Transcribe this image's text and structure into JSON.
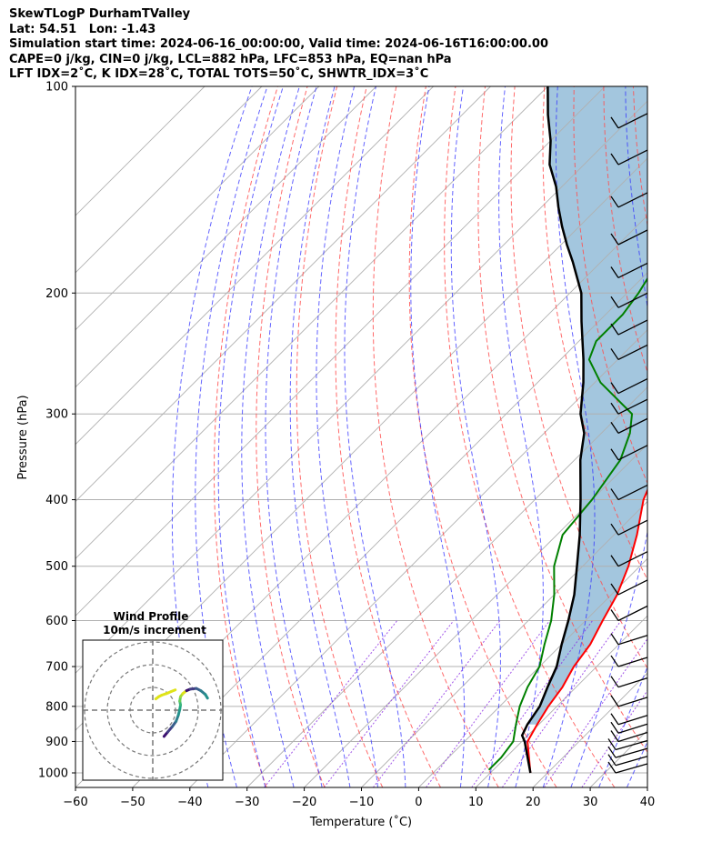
{
  "header": {
    "line1": "SkewTLogP DurhamTValley",
    "line2": "Lat: 54.51   Lon: -1.43",
    "line3": "Simulation start time: 2024-06-16_00:00:00, Valid time: 2024-06-16T16:00:00.00",
    "line4": "CAPE=0 j/kg, CIN=0 j/kg, LCL=882 hPa, LFC=853 hPa, EQ=nan hPa",
    "line5": "LFT IDX=2˚C, K IDX=28˚C, TOTAL TOTS=50˚C, SHWTR_IDX=3˚C"
  },
  "chart_data": {
    "type": "line",
    "subtype": "skew-T log-P",
    "xlabel": "Temperature (˚C)",
    "ylabel": "Pressure (hPa)",
    "xlim": [
      -60,
      40
    ],
    "ylim": [
      1050,
      100
    ],
    "y_scale": "log",
    "grid": true,
    "x_ticks": [
      "−60",
      "−50",
      "−40",
      "−30",
      "−20",
      "−10",
      "0",
      "10",
      "20",
      "30",
      "40"
    ],
    "y_ticks": [
      "100",
      "200",
      "300",
      "400",
      "500",
      "600",
      "700",
      "800",
      "900",
      "1000"
    ],
    "series": [
      {
        "role": "temperature",
        "color": "#ff0000",
        "points": [
          [
            17,
            1000
          ],
          [
            11,
            900
          ],
          [
            9.7,
            850
          ],
          [
            8.5,
            800
          ],
          [
            7.6,
            750
          ],
          [
            6,
            700
          ],
          [
            5,
            650
          ],
          [
            3,
            600
          ],
          [
            1,
            550
          ],
          [
            -2,
            500
          ],
          [
            -6,
            450
          ],
          [
            -11,
            400
          ],
          [
            -15,
            350
          ],
          [
            -20,
            320
          ],
          [
            -24,
            300
          ],
          [
            -26,
            280
          ],
          [
            -31,
            250
          ],
          [
            -37,
            220
          ],
          [
            -42,
            200
          ],
          [
            -48,
            180
          ],
          [
            -52,
            170
          ],
          [
            -55,
            160
          ],
          [
            -58,
            150
          ],
          [
            -62,
            140
          ],
          [
            -65,
            130
          ],
          [
            -70,
            120
          ],
          [
            -72,
            110
          ],
          [
            -76,
            100
          ]
        ]
      },
      {
        "role": "dewpoint",
        "color": "#008000",
        "points": [
          [
            9.2,
            990
          ],
          [
            9.2,
            950
          ],
          [
            8.5,
            900
          ],
          [
            6,
            850
          ],
          [
            3.5,
            800
          ],
          [
            1.5,
            750
          ],
          [
            0,
            700
          ],
          [
            -3,
            650
          ],
          [
            -6,
            600
          ],
          [
            -10,
            550
          ],
          [
            -15,
            500
          ],
          [
            -19,
            450
          ],
          [
            -20,
            400
          ],
          [
            -22,
            350
          ],
          [
            -25,
            320
          ],
          [
            -28,
            300
          ],
          [
            -39,
            270
          ],
          [
            -45,
            250
          ],
          [
            -47,
            235
          ],
          [
            -47,
            215
          ],
          [
            -48,
            200
          ],
          [
            -49,
            190
          ],
          [
            -53,
            170
          ],
          [
            -57,
            150
          ],
          [
            -60,
            130
          ],
          [
            -63,
            115
          ],
          [
            -66,
            100
          ]
        ]
      },
      {
        "role": "parcel",
        "color": "#000000",
        "points": [
          [
            17,
            1000
          ],
          [
            10.5,
            900
          ],
          [
            9,
            882
          ],
          [
            8,
            850
          ],
          [
            7,
            800
          ],
          [
            5,
            750
          ],
          [
            3,
            700
          ],
          [
            0,
            650
          ],
          [
            -3,
            600
          ],
          [
            -6.5,
            550
          ],
          [
            -11,
            500
          ],
          [
            -16,
            450
          ],
          [
            -22,
            400
          ],
          [
            -29,
            350
          ],
          [
            -33,
            320
          ],
          [
            -37,
            300
          ],
          [
            -42,
            270
          ],
          [
            -46,
            250
          ],
          [
            -53,
            220
          ],
          [
            -58,
            200
          ],
          [
            -65,
            180
          ],
          [
            -69,
            170
          ],
          [
            -73,
            160
          ],
          [
            -77,
            150
          ],
          [
            -81,
            140
          ],
          [
            -86,
            130
          ],
          [
            -90,
            120
          ],
          [
            -95,
            110
          ],
          [
            -100,
            100
          ]
        ]
      }
    ],
    "wind_barbs_pressure_hPa": [
      1000,
      975,
      950,
      925,
      900,
      875,
      850,
      800,
      750,
      700,
      650,
      600,
      550,
      500,
      450,
      400,
      350,
      320,
      300,
      280,
      250,
      230,
      210,
      190,
      170,
      150,
      130,
      115
    ],
    "inset": {
      "title_line1": "Wind Profile",
      "title_line2": "10m/s increment",
      "hodograph_u": [
        1.5,
        2,
        2.6,
        3.1,
        3.4,
        3.6,
        3.7,
        3.6,
        3.7,
        4.0,
        4.5,
        5,
        5.8,
        6.4,
        7,
        7.3
      ],
      "hodograph_v": [
        -3.5,
        -2.9,
        -2.2,
        -1.5,
        -0.7,
        0.1,
        0.7,
        1.2,
        1.8,
        2.2,
        2.6,
        2.8,
        2.9,
        2.6,
        2.1,
        1.6
      ],
      "hodograph_u_upper": [
        3.0,
        2.5,
        1.8,
        1.2,
        0.8,
        0.4
      ],
      "hodograph_v_upper": [
        2.7,
        2.5,
        2.2,
        2.0,
        1.8,
        1.5
      ]
    }
  },
  "colors": {
    "isotherm": "#b0b0b0",
    "dry_adiabat": "#ff5050",
    "moist_adiabat": "#3030ff",
    "mixing_ratio": "#8a2be2",
    "cape_fill": "#a3c6de",
    "axis": "#000000"
  }
}
